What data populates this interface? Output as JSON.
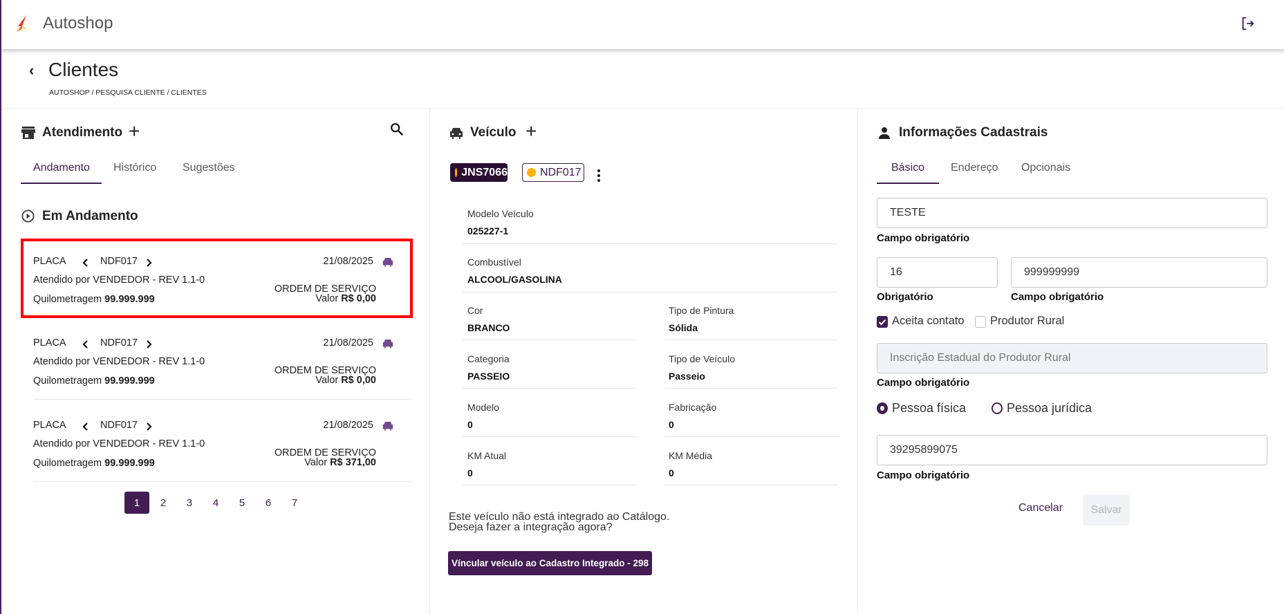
{
  "app": {
    "title": "Autoshop"
  },
  "page": {
    "title": "Clientes",
    "breadcrumb": "AUTOSHOP / PESQUISA CLIENTE / CLIENTES"
  },
  "atendimento": {
    "title": "Atendimento",
    "tabs": [
      "Andamento",
      "Histórico",
      "Sugestões"
    ],
    "active_tab": "Andamento",
    "section": "Em Andamento",
    "cards": [
      {
        "placa_label": "PLACA",
        "placa": "NDF017",
        "date": "21/08/2025",
        "attended": "Atendido por VENDEDOR - REV 1.1-0",
        "km_label": "Quilometragem",
        "km": "99.999.999",
        "os": "ORDEM DE SERVIÇO",
        "valor_label": "Valor",
        "valor": "R$ 0,00"
      },
      {
        "placa_label": "PLACA",
        "placa": "NDF017",
        "date": "21/08/2025",
        "attended": "Atendido por VENDEDOR - REV 1.1-0",
        "km_label": "Quilometragem",
        "km": "99.999.999",
        "os": "ORDEM DE SERVIÇO",
        "valor_label": "Valor",
        "valor": "R$ 0,00"
      },
      {
        "placa_label": "PLACA",
        "placa": "NDF017",
        "date": "21/08/2025",
        "attended": "Atendido por VENDEDOR - REV 1.1-0",
        "km_label": "Quilometragem",
        "km": "99.999.999",
        "os": "ORDEM DE SERVIÇO",
        "valor_label": "Valor",
        "valor": "R$ 371,00"
      }
    ],
    "pages": [
      "1",
      "2",
      "3",
      "4",
      "5",
      "6",
      "7"
    ],
    "current_page": "1"
  },
  "veiculo": {
    "title": "Veículo",
    "chips": [
      {
        "label": "JNS7066",
        "active": true
      },
      {
        "label": "NDF017",
        "active": false
      }
    ],
    "fields": {
      "modelo_veiculo": {
        "label": "Modelo Veículo",
        "value": "025227-1"
      },
      "combustivel": {
        "label": "Combustível",
        "value": "ALCOOL/GASOLINA"
      },
      "cor": {
        "label": "Cor",
        "value": "BRANCO"
      },
      "tipo_pintura": {
        "label": "Tipo de Pintura",
        "value": "Sólida"
      },
      "categoria": {
        "label": "Categoria",
        "value": "PASSEIO"
      },
      "tipo_veiculo": {
        "label": "Tipo de Veículo",
        "value": "Passeio"
      },
      "modelo": {
        "label": "Modelo",
        "value": "0"
      },
      "fabricacao": {
        "label": "Fabricação",
        "value": "0"
      },
      "km_atual": {
        "label": "KM Atual",
        "value": "0"
      },
      "km_media": {
        "label": "KM Média",
        "value": "0"
      }
    },
    "integration_msg_1": "Este veículo não está integrado ao Catálogo.",
    "integration_msg_2": "Deseja fazer a integração agora?",
    "integrate_button": "Víncular veículo ao Cadastro Integrado - 298"
  },
  "info": {
    "title": "Informações Cadastrais",
    "tabs": [
      "Básico",
      "Endereço",
      "Opcionais"
    ],
    "active_tab": "Básico",
    "name_value": "TESTE",
    "name_hint": "Campo obrigatório",
    "ddd_value": "16",
    "ddd_hint": "Obrigatório",
    "phone_value": "999999999",
    "phone_hint": "Campo obrigatório",
    "aceita_contato": {
      "label": "Aceita contato",
      "checked": true
    },
    "produtor_rural": {
      "label": "Produtor Rural",
      "checked": false
    },
    "ie_placeholder": "Inscrição Estadual do Produtor Rural",
    "ie_hint": "Campo obrigatório",
    "pessoa_fisica": {
      "label": "Pessoa física",
      "selected": true
    },
    "pessoa_juridica": {
      "label": "Pessoa jurídica",
      "selected": false
    },
    "doc_value": "39295899075",
    "doc_hint": "Campo obrigatório",
    "cancel": "Cancelar",
    "save": "Salvar"
  },
  "colors": {
    "primary": "#421c52",
    "chip_dark": "#2a0f33",
    "dot": "#ffb300",
    "highlight": "#ff0000"
  }
}
